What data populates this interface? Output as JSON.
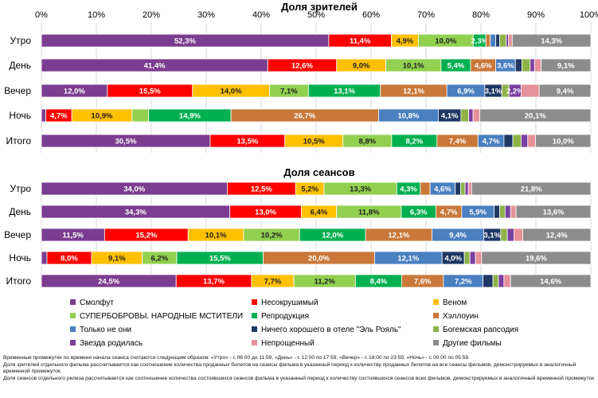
{
  "chart_data": [
    {
      "type": "bar",
      "orientation": "horizontal",
      "stacked": true,
      "title": "Доля зрителей",
      "x_ticks": [
        "0%",
        "10%",
        "20%",
        "30%",
        "40%",
        "50%",
        "60%",
        "70%",
        "80%",
        "90%",
        "100%"
      ],
      "xlim": [
        0,
        100
      ],
      "grid": true,
      "categories": [
        "Утро",
        "День",
        "Вечер",
        "Ночь",
        "Итого"
      ],
      "series": [
        {
          "name": "Смолфут",
          "values": [
            52.3,
            41.4,
            12.0,
            0.8,
            30.5
          ],
          "labels": [
            "52,3%",
            "41,4%",
            "12,0%",
            "",
            "30,5%"
          ]
        },
        {
          "name": "Несокрушимый",
          "values": [
            11.4,
            12.6,
            15.5,
            4.7,
            13.5
          ],
          "labels": [
            "11,4%",
            "12,6%",
            "15,5%",
            "4,7%",
            "13,5%"
          ]
        },
        {
          "name": "Веном",
          "values": [
            4.9,
            9.0,
            14.0,
            10.9,
            10.5
          ],
          "labels": [
            "4,9%",
            "9,0%",
            "14,0%",
            "10,9%",
            "10,5%"
          ]
        },
        {
          "name": "СУПЕРБОБРОВЫ. НАРОДНЫЕ МСТИТЕЛИ",
          "values": [
            10.0,
            10.1,
            7.1,
            3.0,
            8.8
          ],
          "labels": [
            "10,0%",
            "10,1%",
            "7,1%",
            "",
            "8,8%"
          ]
        },
        {
          "name": "Репродукция",
          "values": [
            2.3,
            5.4,
            13.1,
            14.9,
            8.2
          ],
          "labels": [
            "2,3%",
            "5,4%",
            "13,1%",
            "14,9%",
            "8,2%"
          ]
        },
        {
          "name": "Хэллоуин",
          "values": [
            0.8,
            4.6,
            12.1,
            26.7,
            7.4
          ],
          "labels": [
            "",
            "4,6%",
            "12,1%",
            "26,7%",
            "7,4%"
          ]
        },
        {
          "name": "Только не они",
          "values": [
            1.0,
            3.6,
            6.9,
            10.8,
            4.7
          ],
          "labels": [
            "",
            "3,6%",
            "6,9%",
            "10,8%",
            "4,7%"
          ]
        },
        {
          "name": "Ничего хорошего в отеле \"Эль Рояль\"",
          "values": [
            0.7,
            1.2,
            3.1,
            4.1,
            1.6
          ],
          "labels": [
            "",
            "",
            "3,1%",
            "4,1%",
            ""
          ]
        },
        {
          "name": "Богемская рапсодия",
          "values": [
            1.2,
            1.5,
            1.3,
            1.4,
            1.5
          ],
          "labels": [
            "",
            "",
            "",
            "",
            ""
          ]
        },
        {
          "name": "Звезда родилась",
          "values": [
            0.4,
            0.8,
            2.2,
            0.8,
            1.2
          ],
          "labels": [
            "",
            "",
            "2,2%",
            "",
            ""
          ]
        },
        {
          "name": "Непрощенный",
          "values": [
            0.7,
            1.2,
            3.3,
            1.2,
            1.4
          ],
          "labels": [
            "",
            "",
            "",
            "",
            ""
          ]
        },
        {
          "name": "Другие фильмы",
          "values": [
            14.3,
            9.1,
            9.4,
            20.1,
            10.0
          ],
          "labels": [
            "14,3%",
            "9,1%",
            "9,4%",
            "20,1%",
            "10,0%"
          ]
        }
      ]
    },
    {
      "type": "bar",
      "orientation": "horizontal",
      "stacked": true,
      "title": "Доля сеансов",
      "xlim": [
        0,
        100
      ],
      "grid": true,
      "categories": [
        "Утро",
        "День",
        "Вечер",
        "Ночь",
        "Итого"
      ],
      "series": [
        {
          "name": "Смолфут",
          "values": [
            34.0,
            34.3,
            11.5,
            1.0,
            24.5
          ],
          "labels": [
            "34,0%",
            "34,3%",
            "11,5%",
            "",
            "24,5%"
          ]
        },
        {
          "name": "Несокрушимый",
          "values": [
            12.5,
            13.0,
            15.2,
            8.0,
            13.7
          ],
          "labels": [
            "12,5%",
            "13,0%",
            "15,2%",
            "8,0%",
            "13,7%"
          ]
        },
        {
          "name": "Веном",
          "values": [
            5.2,
            6.4,
            10.1,
            9.1,
            7.7
          ],
          "labels": [
            "5,2%",
            "6,4%",
            "10,1%",
            "9,1%",
            "7,7%"
          ]
        },
        {
          "name": "СУПЕРБОБРОВЫ. НАРОДНЫЕ МСТИТЕЛИ",
          "values": [
            13.3,
            11.8,
            10.2,
            6.2,
            11.2
          ],
          "labels": [
            "13,3%",
            "11,8%",
            "10,2%",
            "6,2%",
            "11,2%"
          ]
        },
        {
          "name": "Репродукция",
          "values": [
            4.3,
            6.3,
            12.0,
            15.5,
            8.4
          ],
          "labels": [
            "4,3%",
            "6,3%",
            "12,0%",
            "15,5%",
            "8,4%"
          ]
        },
        {
          "name": "Хэллоуин",
          "values": [
            1.8,
            4.7,
            12.1,
            20.0,
            7.6
          ],
          "labels": [
            "",
            "4,7%",
            "12,1%",
            "20,0%",
            "7,6%"
          ]
        },
        {
          "name": "Только не они",
          "values": [
            4.6,
            5.9,
            9.4,
            12.1,
            7.2
          ],
          "labels": [
            "4,6%",
            "5,9%",
            "9,4%",
            "12,1%",
            "7,2%"
          ]
        },
        {
          "name": "Ничего хорошего в отеле \"Эль Рояль\"",
          "values": [
            1.0,
            1.0,
            3.1,
            4.0,
            1.8
          ],
          "labels": [
            "",
            "",
            "3,1%",
            "4,0%",
            ""
          ]
        },
        {
          "name": "Богемская рапсодия",
          "values": [
            0.8,
            1.0,
            1.2,
            1.0,
            1.0
          ],
          "labels": [
            "",
            "",
            "",
            "",
            ""
          ]
        },
        {
          "name": "Звезда родилась",
          "values": [
            0.6,
            1.0,
            1.2,
            1.0,
            1.0
          ],
          "labels": [
            "",
            "",
            "",
            "",
            ""
          ]
        },
        {
          "name": "Непрощенный",
          "values": [
            0.6,
            1.0,
            1.6,
            1.1,
            1.2
          ],
          "labels": [
            "",
            "",
            "",
            "",
            ""
          ]
        },
        {
          "name": "Другие фильмы",
          "values": [
            21.8,
            13.6,
            12.4,
            19.6,
            14.6
          ],
          "labels": [
            "21,8%",
            "13,6%",
            "12,4%",
            "19,6%",
            "14,6%"
          ]
        }
      ]
    }
  ],
  "colors": [
    "#7b3d8f",
    "#ff0000",
    "#ffc000",
    "#92d050",
    "#00b050",
    "#c9783a",
    "#4a7fc0",
    "#1f3864",
    "#8db348",
    "#7b3fa0",
    "#e6919a",
    "#8c8c8c"
  ],
  "legend": {
    "items": [
      {
        "label": "Смолфут",
        "color": "#7b3d8f"
      },
      {
        "label": "Несокрушимый",
        "color": "#ff0000"
      },
      {
        "label": "Веном",
        "color": "#ffc000"
      },
      {
        "label": "СУПЕРБОБРОВЫ. НАРОДНЫЕ МСТИТЕЛИ",
        "color": "#92d050"
      },
      {
        "label": "Репродукция",
        "color": "#00b050"
      },
      {
        "label": "Хэллоуин",
        "color": "#c9783a"
      },
      {
        "label": "Только не они",
        "color": "#4a7fc0"
      },
      {
        "label": "Ничего хорошего в отеле \"Эль Рояль\"",
        "color": "#1f3864"
      },
      {
        "label": "Богемская рапсодия",
        "color": "#8db348"
      },
      {
        "label": "Звезда родилась",
        "color": "#7b3fa0"
      },
      {
        "label": "Непрощенный",
        "color": "#e6919a"
      },
      {
        "label": "Другие фильмы",
        "color": "#8c8c8c"
      }
    ]
  },
  "notes": {
    "line1": "Временные промежутки по времени начала сеанса считаются следующим образом: «Утро» - с 06:00 до 11:59, «День» - с 12:00 по 17:59, «Вечер» - с 18:00 по 23:59, «Ночь» - с 00:00 по 05:59.",
    "line2": "Доля зрителей отдельного фильма рассчитывается как соотношение количества проданных билетов на сеансы фильма в указанный период к количеству проданных билетов на все сеансы фильмов, демонстрируемых в аналогичный временной промежуток.",
    "line3": "Доля сеансов отдельного релиза рассчитывается как соотношение количества состоявшихся сеансов фильма в указанный период к количеству состоявшихся сеансов всех фильмов, демонстрируемых в аналогичный временной промежуток"
  }
}
